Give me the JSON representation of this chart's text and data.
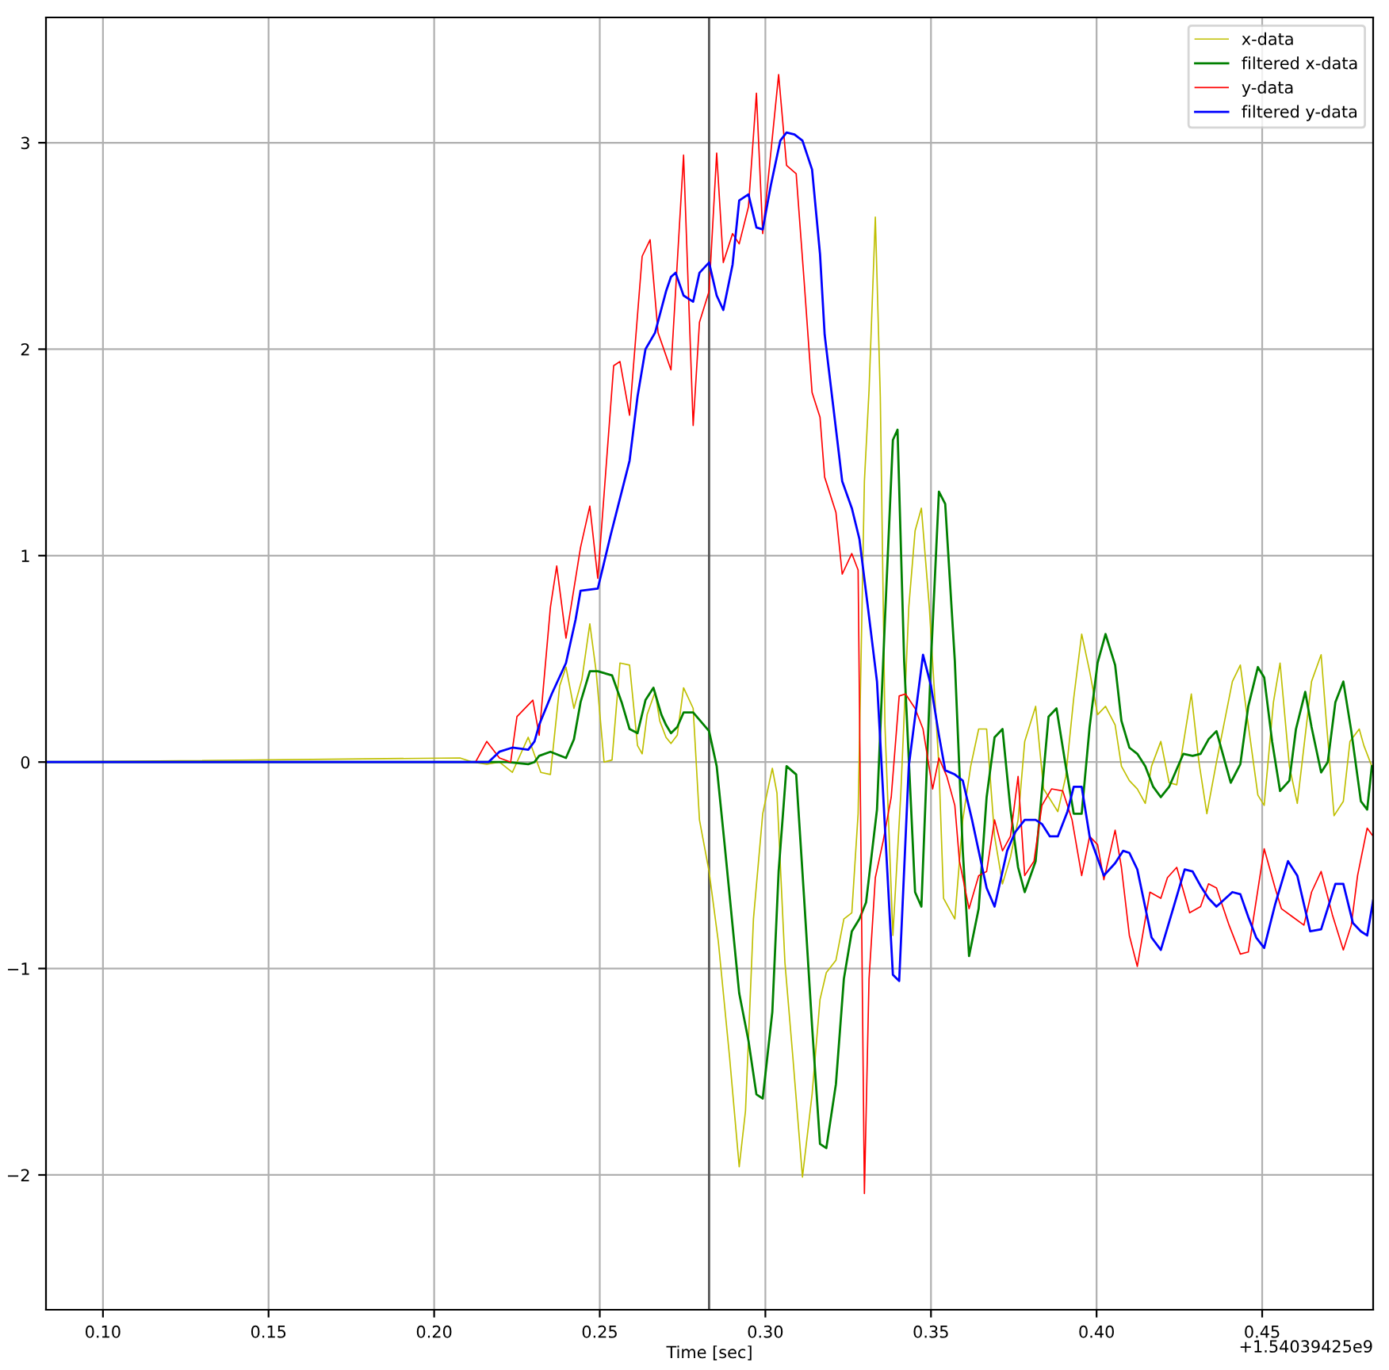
{
  "chart_data": {
    "type": "line",
    "xlabel": "Time [sec]",
    "annotations": [
      "+1.54039425e9"
    ],
    "xlim": [
      0.0828,
      0.4835
    ],
    "ylim": [
      -2.653,
      3.607
    ],
    "xticks": [
      {
        "value": 0.1,
        "label": "0.10"
      },
      {
        "value": 0.15,
        "label": "0.15"
      },
      {
        "value": 0.2,
        "label": "0.20"
      },
      {
        "value": 0.25,
        "label": "0.25"
      },
      {
        "value": 0.3,
        "label": "0.30"
      },
      {
        "value": 0.35,
        "label": "0.35"
      },
      {
        "value": 0.4,
        "label": "0.40"
      },
      {
        "value": 0.45,
        "label": "0.45"
      }
    ],
    "yticks": [
      {
        "value": -2,
        "label": "−2"
      },
      {
        "value": -1,
        "label": "−1"
      },
      0,
      1,
      2,
      3
    ],
    "grid": true,
    "legend": "top right",
    "marker": "none",
    "line_style": "solid",
    "ref_lines": [
      {
        "axis": "x",
        "value": 0.283,
        "color": "#555555"
      }
    ],
    "series": [
      {
        "name": "x-data",
        "color": "#bfbf00",
        "x": [
          0.0828,
          0.2078,
          0.2116,
          0.2159,
          0.2197,
          0.2236,
          0.2284,
          0.2322,
          0.2351,
          0.2379,
          0.2398,
          0.2422,
          0.2446,
          0.247,
          0.2489,
          0.2513,
          0.2537,
          0.2561,
          0.259,
          0.2614,
          0.2628,
          0.2643,
          0.2667,
          0.2681,
          0.27,
          0.2715,
          0.2734,
          0.2753,
          0.2782,
          0.2801,
          0.283,
          0.2858,
          0.2892,
          0.2921,
          0.294,
          0.2964,
          0.2992,
          0.3021,
          0.3035,
          0.3059,
          0.3083,
          0.3112,
          0.3141,
          0.3165,
          0.3184,
          0.3213,
          0.3237,
          0.3261,
          0.328,
          0.3299,
          0.3313,
          0.3332,
          0.3347,
          0.3361,
          0.3385,
          0.3409,
          0.3433,
          0.3452,
          0.3471,
          0.3495,
          0.3524,
          0.3538,
          0.3572,
          0.3596,
          0.362,
          0.3644,
          0.3668,
          0.3692,
          0.3716,
          0.374,
          0.3763,
          0.3783,
          0.3816,
          0.384,
          0.3883,
          0.3907,
          0.3931,
          0.3955,
          0.3979,
          0.4003,
          0.4027,
          0.4056,
          0.4075,
          0.4099,
          0.4123,
          0.4147,
          0.4166,
          0.4194,
          0.4219,
          0.4242,
          0.4286,
          0.4309,
          0.4333,
          0.4362,
          0.441,
          0.4434,
          0.4458,
          0.4487,
          0.4506,
          0.4534,
          0.4554,
          0.4582,
          0.4606,
          0.4649,
          0.4678,
          0.4693,
          0.4717,
          0.4745,
          0.4765,
          0.4793,
          0.4807,
          0.4831
        ],
        "values": [
          0,
          0.02,
          0,
          -0.01,
          0,
          -0.05,
          0.12,
          -0.05,
          -0.06,
          0.37,
          0.46,
          0.26,
          0.4,
          0.67,
          0.44,
          0,
          0.01,
          0.48,
          0.47,
          0.08,
          0.04,
          0.23,
          0.34,
          0.2,
          0.12,
          0.09,
          0.13,
          0.36,
          0.26,
          -0.28,
          -0.53,
          -0.87,
          -1.43,
          -1.96,
          -1.69,
          -0.76,
          -0.25,
          -0.03,
          -0.15,
          -0.97,
          -1.43,
          -2.01,
          -1.61,
          -1.15,
          -1.02,
          -0.96,
          -0.76,
          -0.73,
          -0.25,
          1.36,
          1.8,
          2.64,
          1.77,
          0.18,
          -0.84,
          -0.15,
          0.75,
          1.12,
          1.23,
          0.75,
          -0.02,
          -0.66,
          -0.76,
          -0.28,
          -0.02,
          0.16,
          0.16,
          -0.36,
          -0.59,
          -0.46,
          -0.28,
          0.1,
          0.27,
          -0.13,
          -0.24,
          -0.07,
          0.31,
          0.62,
          0.44,
          0.23,
          0.27,
          0.18,
          -0.02,
          -0.09,
          -0.13,
          -0.2,
          -0.02,
          0.1,
          -0.1,
          -0.11,
          0.33,
          0.0,
          -0.25,
          0.0,
          0.39,
          0.47,
          0.18,
          -0.16,
          -0.21,
          0.29,
          0.48,
          -0.02,
          -0.2,
          0.39,
          0.52,
          0.21,
          -0.26,
          -0.19,
          0.1,
          0.16,
          0.08,
          -0.02
        ]
      },
      {
        "name": "filtered x-data",
        "color": "#008000",
        "x": [
          0.0828,
          0.2173,
          0.2221,
          0.2284,
          0.2303,
          0.2317,
          0.2351,
          0.2398,
          0.2422,
          0.2442,
          0.247,
          0.2494,
          0.2537,
          0.2566,
          0.259,
          0.2614,
          0.2638,
          0.2662,
          0.2686,
          0.27,
          0.2715,
          0.2734,
          0.2753,
          0.2782,
          0.283,
          0.2853,
          0.2877,
          0.2921,
          0.2949,
          0.2973,
          0.2992,
          0.3021,
          0.304,
          0.3064,
          0.3093,
          0.3117,
          0.3141,
          0.3165,
          0.3184,
          0.3213,
          0.3237,
          0.3261,
          0.3284,
          0.3304,
          0.3337,
          0.3361,
          0.3385,
          0.3399,
          0.3419,
          0.3452,
          0.3471,
          0.35,
          0.3524,
          0.3543,
          0.3572,
          0.3596,
          0.3615,
          0.3644,
          0.3668,
          0.3692,
          0.3716,
          0.374,
          0.3763,
          0.3783,
          0.3816,
          0.3855,
          0.3879,
          0.3907,
          0.3931,
          0.3955,
          0.3979,
          0.4003,
          0.4027,
          0.4056,
          0.4075,
          0.4099,
          0.4123,
          0.4147,
          0.4171,
          0.4194,
          0.4219,
          0.4262,
          0.429,
          0.4314,
          0.4338,
          0.4362,
          0.4405,
          0.4434,
          0.4458,
          0.4487,
          0.4506,
          0.453,
          0.4554,
          0.4582,
          0.4602,
          0.463,
          0.4649,
          0.4678,
          0.4698,
          0.4721,
          0.4745,
          0.4769,
          0.4798,
          0.4817,
          0.4831
        ],
        "values": [
          0,
          0,
          0,
          -0.01,
          0,
          0.03,
          0.05,
          0.02,
          0.11,
          0.29,
          0.44,
          0.44,
          0.42,
          0.29,
          0.16,
          0.14,
          0.3,
          0.36,
          0.23,
          0.18,
          0.14,
          0.17,
          0.24,
          0.24,
          0.15,
          -0.02,
          -0.4,
          -1.12,
          -1.35,
          -1.61,
          -1.63,
          -1.21,
          -0.53,
          -0.02,
          -0.06,
          -0.66,
          -1.28,
          -1.85,
          -1.87,
          -1.56,
          -1.05,
          -0.82,
          -0.76,
          -0.68,
          -0.23,
          0.69,
          1.56,
          1.61,
          0.49,
          -0.63,
          -0.7,
          0.49,
          1.31,
          1.25,
          0.49,
          -0.43,
          -0.94,
          -0.71,
          -0.17,
          0.12,
          0.16,
          -0.23,
          -0.51,
          -0.63,
          -0.48,
          0.22,
          0.26,
          -0.02,
          -0.25,
          -0.25,
          0.17,
          0.48,
          0.62,
          0.47,
          0.2,
          0.07,
          0.04,
          -0.02,
          -0.12,
          -0.17,
          -0.12,
          0.04,
          0.03,
          0.04,
          0.11,
          0.15,
          -0.1,
          -0.01,
          0.27,
          0.46,
          0.41,
          0.1,
          -0.14,
          -0.09,
          0.16,
          0.34,
          0.17,
          -0.05,
          0.0,
          0.29,
          0.39,
          0.15,
          -0.19,
          -0.23,
          -0.02
        ]
      },
      {
        "name": "y-data",
        "color": "#ff0000",
        "x": [
          0.0828,
          0.2125,
          0.2159,
          0.2197,
          0.2231,
          0.225,
          0.2298,
          0.2317,
          0.2351,
          0.237,
          0.2398,
          0.2442,
          0.247,
          0.2494,
          0.2542,
          0.2561,
          0.259,
          0.2628,
          0.2652,
          0.2676,
          0.2715,
          0.2753,
          0.2782,
          0.2801,
          0.283,
          0.2853,
          0.2873,
          0.2901,
          0.2921,
          0.2949,
          0.2973,
          0.2992,
          0.304,
          0.3064,
          0.3093,
          0.3117,
          0.3141,
          0.3165,
          0.3179,
          0.3213,
          0.3232,
          0.3261,
          0.328,
          0.3299,
          0.3313,
          0.3332,
          0.3356,
          0.338,
          0.3404,
          0.3423,
          0.3452,
          0.3476,
          0.3505,
          0.3524,
          0.3548,
          0.3572,
          0.3586,
          0.3615,
          0.3644,
          0.3668,
          0.3692,
          0.3716,
          0.374,
          0.3763,
          0.3783,
          0.3811,
          0.3835,
          0.3864,
          0.3898,
          0.3926,
          0.3955,
          0.3979,
          0.4003,
          0.4022,
          0.4056,
          0.4075,
          0.4099,
          0.4123,
          0.4161,
          0.4194,
          0.4214,
          0.4242,
          0.4281,
          0.4314,
          0.4338,
          0.4362,
          0.44,
          0.4434,
          0.4458,
          0.4506,
          0.4539,
          0.4558,
          0.4592,
          0.4626,
          0.4649,
          0.4678,
          0.4712,
          0.4745,
          0.4769,
          0.4788,
          0.4817,
          0.4835
        ],
        "values": [
          0,
          0,
          0.1,
          0.02,
          0,
          0.22,
          0.3,
          0.13,
          0.75,
          0.95,
          0.6,
          1.04,
          1.24,
          0.89,
          1.92,
          1.94,
          1.68,
          2.45,
          2.53,
          2.08,
          1.9,
          2.94,
          1.63,
          2.13,
          2.28,
          2.95,
          2.42,
          2.56,
          2.51,
          2.69,
          3.24,
          2.56,
          3.33,
          2.89,
          2.85,
          2.33,
          1.79,
          1.67,
          1.38,
          1.21,
          0.91,
          1.01,
          0.93,
          -2.09,
          -1.05,
          -0.56,
          -0.38,
          -0.17,
          0.32,
          0.33,
          0.26,
          0.16,
          -0.13,
          0.02,
          -0.07,
          -0.21,
          -0.48,
          -0.71,
          -0.55,
          -0.53,
          -0.28,
          -0.43,
          -0.36,
          -0.07,
          -0.55,
          -0.48,
          -0.21,
          -0.13,
          -0.14,
          -0.28,
          -0.55,
          -0.36,
          -0.4,
          -0.57,
          -0.33,
          -0.51,
          -0.84,
          -0.99,
          -0.63,
          -0.66,
          -0.56,
          -0.51,
          -0.73,
          -0.7,
          -0.59,
          -0.61,
          -0.79,
          -0.93,
          -0.92,
          -0.42,
          -0.61,
          -0.71,
          -0.75,
          -0.79,
          -0.63,
          -0.53,
          -0.74,
          -0.91,
          -0.79,
          -0.55,
          -0.32,
          -0.36
        ]
      },
      {
        "name": "filtered y-data",
        "color": "#0000ff",
        "x": [
          0.0828,
          0.2164,
          0.2197,
          0.2236,
          0.2284,
          0.2303,
          0.2317,
          0.2355,
          0.2398,
          0.2427,
          0.2442,
          0.2494,
          0.2533,
          0.259,
          0.2614,
          0.2638,
          0.2667,
          0.27,
          0.2715,
          0.2729,
          0.2753,
          0.2782,
          0.2801,
          0.283,
          0.2853,
          0.2873,
          0.2901,
          0.2921,
          0.2949,
          0.2973,
          0.2992,
          0.3016,
          0.3045,
          0.3064,
          0.3088,
          0.3112,
          0.3141,
          0.3165,
          0.3179,
          0.3232,
          0.3261,
          0.3284,
          0.3308,
          0.3337,
          0.3347,
          0.3385,
          0.3404,
          0.3433,
          0.3476,
          0.35,
          0.3524,
          0.3543,
          0.3572,
          0.3596,
          0.3624,
          0.3644,
          0.3668,
          0.3692,
          0.373,
          0.3754,
          0.3783,
          0.3816,
          0.3835,
          0.3859,
          0.3883,
          0.3912,
          0.3931,
          0.3955,
          0.3979,
          0.4022,
          0.4056,
          0.408,
          0.4099,
          0.4123,
          0.4166,
          0.4194,
          0.4233,
          0.4266,
          0.429,
          0.4314,
          0.4338,
          0.4362,
          0.441,
          0.4434,
          0.4458,
          0.4482,
          0.4506,
          0.4539,
          0.4578,
          0.4606,
          0.4645,
          0.4678,
          0.4721,
          0.4745,
          0.4774,
          0.4798,
          0.4817,
          0.4835
        ],
        "values": [
          0,
          0,
          0.05,
          0.07,
          0.06,
          0.1,
          0.18,
          0.33,
          0.48,
          0.69,
          0.83,
          0.84,
          1.1,
          1.46,
          1.77,
          2.0,
          2.08,
          2.28,
          2.35,
          2.37,
          2.26,
          2.23,
          2.37,
          2.42,
          2.26,
          2.19,
          2.41,
          2.72,
          2.75,
          2.59,
          2.58,
          2.79,
          3.01,
          3.05,
          3.04,
          3.01,
          2.87,
          2.46,
          2.07,
          1.36,
          1.23,
          1.08,
          0.77,
          0.39,
          0.1,
          -1.03,
          -1.06,
          -0.02,
          0.52,
          0.37,
          0.13,
          -0.04,
          -0.06,
          -0.09,
          -0.28,
          -0.43,
          -0.61,
          -0.7,
          -0.43,
          -0.34,
          -0.28,
          -0.28,
          -0.3,
          -0.36,
          -0.36,
          -0.24,
          -0.12,
          -0.12,
          -0.36,
          -0.55,
          -0.49,
          -0.43,
          -0.44,
          -0.52,
          -0.85,
          -0.91,
          -0.7,
          -0.52,
          -0.53,
          -0.6,
          -0.66,
          -0.7,
          -0.63,
          -0.64,
          -0.75,
          -0.85,
          -0.9,
          -0.69,
          -0.48,
          -0.55,
          -0.82,
          -0.81,
          -0.59,
          -0.59,
          -0.78,
          -0.82,
          -0.84,
          -0.67
        ]
      }
    ]
  }
}
